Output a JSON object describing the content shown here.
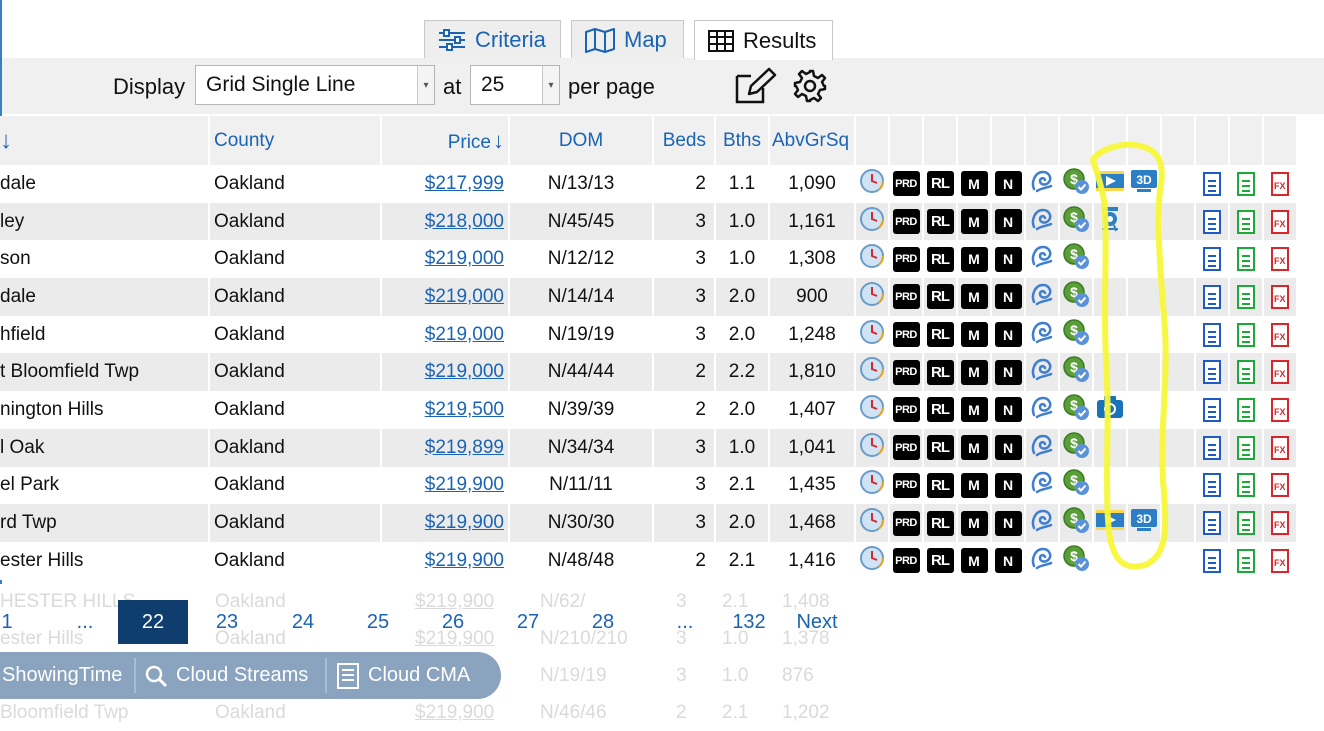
{
  "tabs": [
    {
      "label": "Criteria",
      "icon": "sliders-icon"
    },
    {
      "label": "Map",
      "icon": "map-icon"
    },
    {
      "label": "Results",
      "icon": "grid-icon"
    }
  ],
  "toolbar": {
    "display_label": "Display",
    "display_value": "Grid Single Line",
    "at_label": "at",
    "per_page_value": "25",
    "per_page_label": "per page"
  },
  "columns": {
    "city_sort": "↓",
    "county": "County",
    "price": "Price",
    "dom": "DOM",
    "beds": "Beds",
    "bths": "Bths",
    "abvgrsqft": "AbvGrSq"
  },
  "icon_labels": {
    "prd": "PRD",
    "rl": "RL",
    "m": "M",
    "n": "N",
    "fx": "FX"
  },
  "rows": [
    {
      "city": "dale",
      "county": "Oakland",
      "price": "$217,999",
      "dom": "N/13/13",
      "beds": "2",
      "bths": "1.1",
      "sqft": "1,090",
      "media": [
        "video",
        "3d"
      ]
    },
    {
      "city": "ley",
      "county": "Oakland",
      "price": "$218,000",
      "dom": "N/45/45",
      "beds": "3",
      "bths": "1.0",
      "sqft": "1,161",
      "media": [
        "tour-camera"
      ]
    },
    {
      "city": "son",
      "county": "Oakland",
      "price": "$219,000",
      "dom": "N/12/12",
      "beds": "3",
      "bths": "1.0",
      "sqft": "1,308",
      "media": []
    },
    {
      "city": "dale",
      "county": "Oakland",
      "price": "$219,000",
      "dom": "N/14/14",
      "beds": "3",
      "bths": "2.0",
      "sqft": "900",
      "media": []
    },
    {
      "city": "hfield",
      "county": "Oakland",
      "price": "$219,000",
      "dom": "N/19/19",
      "beds": "3",
      "bths": "2.0",
      "sqft": "1,248",
      "media": []
    },
    {
      "city": "t Bloomfield Twp",
      "county": "Oakland",
      "price": "$219,000",
      "dom": "N/44/44",
      "beds": "2",
      "bths": "2.2",
      "sqft": "1,810",
      "media": []
    },
    {
      "city": "nington Hills",
      "county": "Oakland",
      "price": "$219,500",
      "dom": "N/39/39",
      "beds": "2",
      "bths": "2.0",
      "sqft": "1,407",
      "media": [
        "camera"
      ]
    },
    {
      "city": "l Oak",
      "county": "Oakland",
      "price": "$219,899",
      "dom": "N/34/34",
      "beds": "3",
      "bths": "1.0",
      "sqft": "1,041",
      "media": []
    },
    {
      "city": "el Park",
      "county": "Oakland",
      "price": "$219,900",
      "dom": "N/11/11",
      "beds": "3",
      "bths": "2.1",
      "sqft": "1,435",
      "media": []
    },
    {
      "city": "rd Twp",
      "county": "Oakland",
      "price": "$219,900",
      "dom": "N/30/30",
      "beds": "3",
      "bths": "2.0",
      "sqft": "1,468",
      "media": [
        "video",
        "3d"
      ]
    },
    {
      "city": "ester Hills",
      "county": "Oakland",
      "price": "$219,900",
      "dom": "N/48/48",
      "beds": "2",
      "bths": "2.1",
      "sqft": "1,416",
      "media": []
    }
  ],
  "ghost_rows": [
    {
      "city": "HESTER HILLS",
      "county": "Oakland",
      "price": "$219,900",
      "dom": "N/62/",
      "beds": "3",
      "bths": "2.1",
      "sqft": "1,408"
    },
    {
      "city": "ester Hills",
      "county": "Oakland",
      "price": "$219,900",
      "dom": "N/210/210",
      "beds": "3",
      "bths": "1.0",
      "sqft": "1,378"
    },
    {
      "city": "",
      "county": "Oakland",
      "price": "$219,900",
      "dom": "N/19/19",
      "beds": "3",
      "bths": "1.0",
      "sqft": "876"
    },
    {
      "city": "Bloomfield Twp",
      "county": "Oakland",
      "price": "$219,900",
      "dom": "N/46/46",
      "beds": "2",
      "bths": "2.1",
      "sqft": "1,202"
    }
  ],
  "pager": {
    "pages": [
      "1",
      "...",
      "22",
      "23",
      "24",
      "25",
      "26",
      "27",
      "28",
      "...",
      "132"
    ],
    "current": "22",
    "next_label": "Next"
  },
  "bottom_bar": {
    "items": [
      "ShowingTime",
      "Cloud Streams",
      "Cloud CMA"
    ]
  },
  "colors": {
    "link": "#1b63b3",
    "pager_active": "#0f3e6e",
    "highlight": "#f7f73a",
    "bottom_bar": "#8aa3bf"
  }
}
